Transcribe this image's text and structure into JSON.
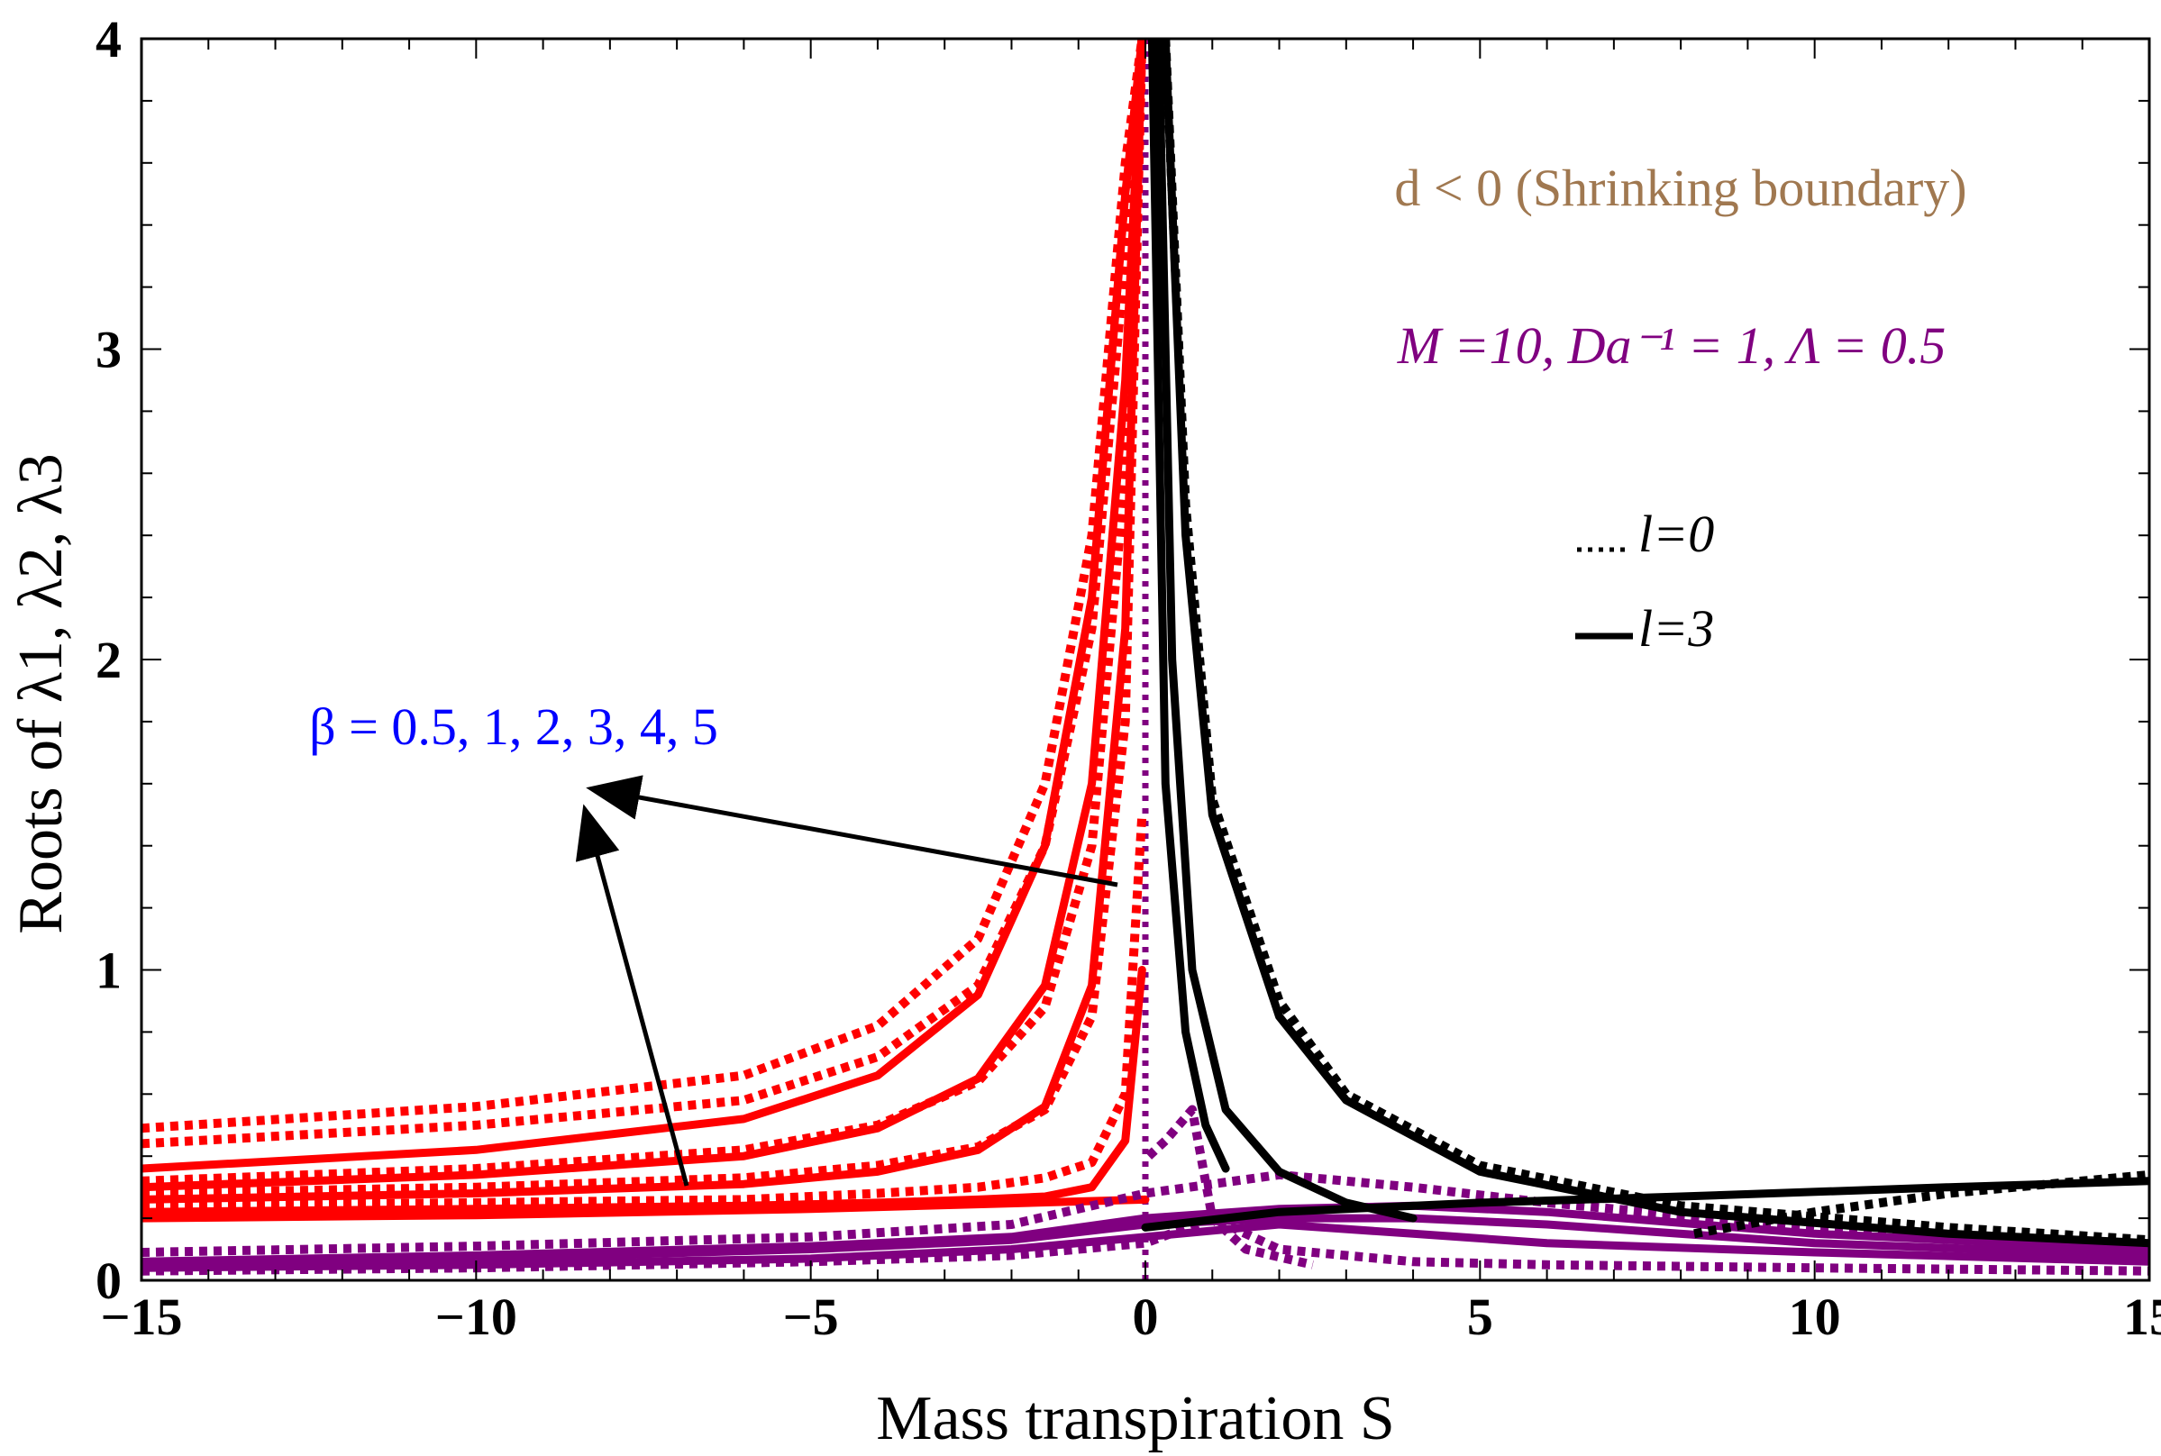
{
  "chart_data": {
    "type": "line",
    "xlabel": "Mass transpiration S",
    "ylabel": "Roots of λ1, λ2, λ3",
    "xlim": [
      -15,
      15
    ],
    "ylim": [
      0,
      4
    ],
    "x_ticks": [
      "−15",
      "−10",
      "−5",
      "0",
      "5",
      "10",
      "15"
    ],
    "y_ticks": [
      "0",
      "1",
      "2",
      "3",
      "4"
    ],
    "grid": false,
    "annotations": {
      "condition": "d < 0 (Shrinking boundary)",
      "params": "M =10, Da⁻¹ = 1, Λ = 0.5",
      "beta_label": "β = 0.5, 1, 2, 3, 4, 5",
      "legend_dotted": "l=0",
      "legend_solid": "l=3"
    },
    "colors": {
      "red": "#ff0000",
      "purple": "#800080",
      "black": "#000000",
      "condition": "#a07850",
      "params": "#800080",
      "beta": "#0000ff"
    },
    "series": [
      {
        "root": "red-l0-1",
        "style": "dotted",
        "color": "red",
        "x": [
          -15,
          -10,
          -6,
          -4,
          -2.5,
          -1.5,
          -0.8,
          -0.3,
          -0.05
        ],
        "y": [
          0.49,
          0.56,
          0.66,
          0.82,
          1.1,
          1.6,
          2.4,
          3.6,
          4.0
        ]
      },
      {
        "root": "red-l0-2",
        "style": "dotted",
        "color": "red",
        "x": [
          -15,
          -10,
          -6,
          -4,
          -2.5,
          -1.5,
          -0.8,
          -0.3,
          -0.05
        ],
        "y": [
          0.44,
          0.5,
          0.58,
          0.72,
          0.95,
          1.4,
          2.1,
          3.3,
          4.0
        ]
      },
      {
        "root": "red-l0-3",
        "style": "dotted",
        "color": "red",
        "x": [
          -15,
          -10,
          -6,
          -4,
          -2.5,
          -1.5,
          -0.8,
          -0.3,
          -0.05
        ],
        "y": [
          0.32,
          0.36,
          0.42,
          0.5,
          0.64,
          0.88,
          1.4,
          2.6,
          4.0
        ]
      },
      {
        "root": "red-l0-4",
        "style": "dotted",
        "color": "red",
        "x": [
          -15,
          -10,
          -6,
          -4,
          -2.5,
          -1.5,
          -0.8,
          -0.3,
          -0.05
        ],
        "y": [
          0.28,
          0.3,
          0.33,
          0.37,
          0.43,
          0.55,
          0.85,
          1.8,
          4.0
        ]
      },
      {
        "root": "red-l0-5",
        "style": "dotted",
        "color": "red",
        "x": [
          -15,
          -10,
          -6,
          -4,
          -2.5,
          -1.5,
          -0.8,
          -0.3,
          -0.05
        ],
        "y": [
          0.24,
          0.25,
          0.26,
          0.28,
          0.3,
          0.33,
          0.38,
          0.6,
          1.5
        ]
      },
      {
        "root": "red-l3-1",
        "style": "solid",
        "color": "red",
        "x": [
          -15,
          -10,
          -6,
          -4,
          -2.5,
          -1.5,
          -0.8,
          -0.3,
          -0.05
        ],
        "y": [
          0.36,
          0.42,
          0.52,
          0.66,
          0.92,
          1.4,
          2.2,
          3.5,
          4.0
        ]
      },
      {
        "root": "red-l3-2",
        "style": "solid",
        "color": "red",
        "x": [
          -15,
          -10,
          -6,
          -4,
          -2.5,
          -1.5,
          -0.8,
          -0.3,
          -0.05
        ],
        "y": [
          0.3,
          0.34,
          0.4,
          0.49,
          0.65,
          0.95,
          1.6,
          2.9,
          4.0
        ]
      },
      {
        "root": "red-l3-3",
        "style": "solid",
        "color": "red",
        "x": [
          -15,
          -10,
          -6,
          -4,
          -2.5,
          -1.5,
          -0.8,
          -0.3,
          -0.05
        ],
        "y": [
          0.26,
          0.28,
          0.31,
          0.35,
          0.42,
          0.56,
          0.95,
          2.1,
          4.0
        ]
      },
      {
        "root": "red-l3-4",
        "style": "solid",
        "color": "red",
        "x": [
          -15,
          -10,
          -6,
          -4,
          -2.5,
          -1.5,
          -0.8,
          -0.3,
          -0.05
        ],
        "y": [
          0.22,
          0.23,
          0.24,
          0.25,
          0.26,
          0.27,
          0.3,
          0.45,
          1.0
        ]
      },
      {
        "root": "red-l3-5",
        "style": "solid",
        "color": "red",
        "x": [
          -15,
          -10,
          -5,
          0
        ],
        "y": [
          0.2,
          0.21,
          0.23,
          0.26
        ]
      },
      {
        "root": "purple-l3-1",
        "style": "solid",
        "color": "purple",
        "x": [
          -15,
          -10,
          -5,
          -2,
          0,
          2,
          4,
          6,
          10,
          15
        ],
        "y": [
          0.06,
          0.08,
          0.11,
          0.14,
          0.2,
          0.23,
          0.24,
          0.22,
          0.15,
          0.1
        ]
      },
      {
        "root": "purple-l3-2",
        "style": "solid",
        "color": "purple",
        "x": [
          -15,
          -10,
          -5,
          -2,
          0,
          2,
          4,
          6,
          10,
          15
        ],
        "y": [
          0.05,
          0.07,
          0.1,
          0.13,
          0.18,
          0.2,
          0.2,
          0.18,
          0.12,
          0.08
        ]
      },
      {
        "root": "purple-l3-3",
        "style": "solid",
        "color": "purple",
        "x": [
          -15,
          -10,
          -5,
          -2,
          0,
          2,
          4,
          6,
          10,
          15
        ],
        "y": [
          0.04,
          0.05,
          0.07,
          0.1,
          0.14,
          0.18,
          0.15,
          0.12,
          0.09,
          0.06
        ]
      },
      {
        "root": "purple-l0-1",
        "style": "dotted",
        "color": "purple",
        "x": [
          -15,
          -10,
          -5,
          -2,
          0,
          2,
          4,
          6,
          10,
          15
        ],
        "y": [
          0.09,
          0.11,
          0.14,
          0.18,
          0.28,
          0.34,
          0.3,
          0.25,
          0.17,
          0.11
        ]
      },
      {
        "root": "purple-l0-2",
        "style": "dotted",
        "color": "purple",
        "x": [
          -15,
          -10,
          -5,
          -2,
          0,
          1,
          2,
          4,
          6,
          10,
          15
        ],
        "y": [
          0.03,
          0.04,
          0.06,
          0.08,
          0.12,
          0.2,
          0.1,
          0.06,
          0.05,
          0.04,
          0.03
        ]
      },
      {
        "root": "purple-l0-3",
        "style": "dotted",
        "color": "purple",
        "x": [
          0.05,
          0.3,
          0.7,
          1.0,
          1.5,
          2.5
        ],
        "y": [
          0.4,
          0.45,
          0.55,
          0.2,
          0.1,
          0.05
        ]
      },
      {
        "root": "black-l3-1",
        "style": "solid",
        "color": "black",
        "x": [
          0.3,
          0.6,
          1,
          2,
          3,
          5,
          8,
          12,
          15
        ],
        "y": [
          4.0,
          2.4,
          1.5,
          0.85,
          0.58,
          0.35,
          0.22,
          0.15,
          0.12
        ]
      },
      {
        "root": "black-l3-2",
        "style": "solid",
        "color": "black",
        "x": [
          0.2,
          0.4,
          0.7,
          1.2,
          2,
          3,
          4
        ],
        "y": [
          4.0,
          2.0,
          1.0,
          0.55,
          0.35,
          0.25,
          0.2
        ]
      },
      {
        "root": "black-l3-3",
        "style": "solid",
        "color": "black",
        "x": [
          0.1,
          0.3,
          0.6,
          0.9,
          1.2
        ],
        "y": [
          4.0,
          1.6,
          0.8,
          0.5,
          0.36
        ]
      },
      {
        "root": "black-l3-4",
        "style": "solid",
        "color": "black",
        "x": [
          0,
          2,
          5,
          8,
          12,
          15
        ],
        "y": [
          0.17,
          0.22,
          0.25,
          0.27,
          0.3,
          0.32
        ]
      },
      {
        "root": "black-l0-1",
        "style": "dotted",
        "color": "black",
        "x": [
          0.3,
          0.6,
          1,
          2,
          3,
          5,
          8,
          12,
          15
        ],
        "y": [
          4.0,
          2.5,
          1.55,
          0.9,
          0.6,
          0.37,
          0.24,
          0.17,
          0.13
        ]
      },
      {
        "root": "black-l0-2",
        "style": "dotted",
        "color": "black",
        "x": [
          8.2,
          10,
          12,
          15
        ],
        "y": [
          0.15,
          0.22,
          0.28,
          0.34
        ]
      }
    ]
  }
}
